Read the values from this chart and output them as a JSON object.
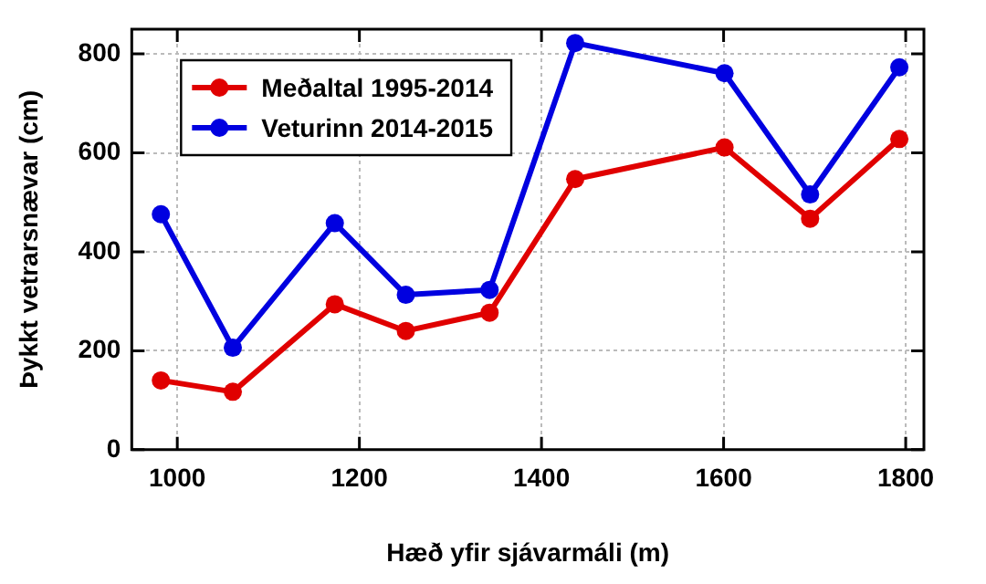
{
  "chart_data": {
    "type": "line",
    "xlabel": "Hæð yfir sjávarmáli (m)",
    "ylabel": "Þykkt vetrarsnævar (cm)",
    "x": [
      982,
      1061,
      1173,
      1251,
      1343,
      1437,
      1601,
      1695,
      1793
    ],
    "series": [
      {
        "name": "Meðaltal 1995-2014",
        "color": "#e00000",
        "values": [
          140,
          117,
          294,
          240,
          277,
          547,
          611,
          467,
          628
        ]
      },
      {
        "name": "Veturinn 2014-2015",
        "color": "#0000e0",
        "values": [
          476,
          206,
          458,
          313,
          323,
          822,
          761,
          516,
          773
        ]
      }
    ],
    "xlim": [
      950,
      1820
    ],
    "xticks": [
      1000,
      1200,
      1400,
      1600,
      1800
    ],
    "ylim": [
      0,
      850
    ],
    "yticks": [
      0,
      200,
      400,
      600,
      800
    ],
    "grid": true,
    "legend": "top left",
    "marker": "circle",
    "line_style": "solid"
  }
}
